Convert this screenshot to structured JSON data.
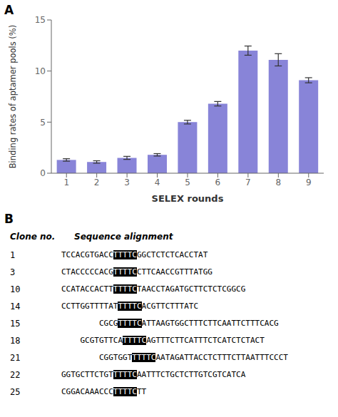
{
  "chart_data": [
    {
      "type": "bar",
      "title": "A",
      "categories": [
        "1",
        "2",
        "3",
        "4",
        "5",
        "6",
        "7",
        "8",
        "9"
      ],
      "values": [
        1.3,
        1.1,
        1.5,
        1.8,
        5.0,
        6.8,
        12.0,
        11.1,
        9.1
      ],
      "errors": [
        0.12,
        0.12,
        0.15,
        0.12,
        0.18,
        0.22,
        0.45,
        0.6,
        0.25
      ],
      "xlabel": "SELEX rounds",
      "ylabel": "Binding rates of aptamer pools (%)",
      "ylim": [
        0,
        15
      ],
      "yticks": [
        0,
        5,
        10,
        15
      ],
      "grid": false,
      "color": "#8884d8"
    },
    {
      "type": "alignment",
      "title": "B",
      "columns": [
        "Clone no.",
        "Sequence alignment"
      ],
      "rows": [
        {
          "no": "1",
          "prefix": "TCCACGTGACC",
          "highlight": "TTTTC",
          "suffix": "GGCTCTCTCACCTAT"
        },
        {
          "no": "3",
          "prefix": "CTACCCCCACG",
          "highlight": "TTTTC",
          "suffix": "CTTCAACCGTTTATGG"
        },
        {
          "no": "10",
          "prefix": "CCATACCACTT",
          "highlight": "TTTTC",
          "suffix": "TAACCTAGATGCTTCTCTCGGCG"
        },
        {
          "no": "14",
          "prefix": "CCTTGGTTTTAT",
          "highlight": "TTTTC",
          "suffix": "ACGTTCTTTATC"
        },
        {
          "no": "15",
          "prefix": "        CGCG",
          "highlight": "TTTTC",
          "suffix": "ATTAAGTGGCTTTCTTCAATTCTTTCACG"
        },
        {
          "no": "18",
          "prefix": "    GCGTGTTCA",
          "highlight": "TTTTC",
          "suffix": "AGTTTCTTCATTTCTCATCTCTACT"
        },
        {
          "no": "21",
          "prefix": "        CGGTGGT",
          "highlight": "TTTTC",
          "suffix": "AATAGATTACCTCTTTCTTAATTTCCCT"
        },
        {
          "no": "22",
          "prefix": "GGTGCTTCTGT",
          "highlight": "TTTTC",
          "suffix": "AATTTCTGCTCTTGTCGTCATCA"
        },
        {
          "no": "25",
          "prefix": "CGGACAAACCC",
          "highlight": "TTTTC",
          "suffix": "TT"
        }
      ]
    }
  ]
}
